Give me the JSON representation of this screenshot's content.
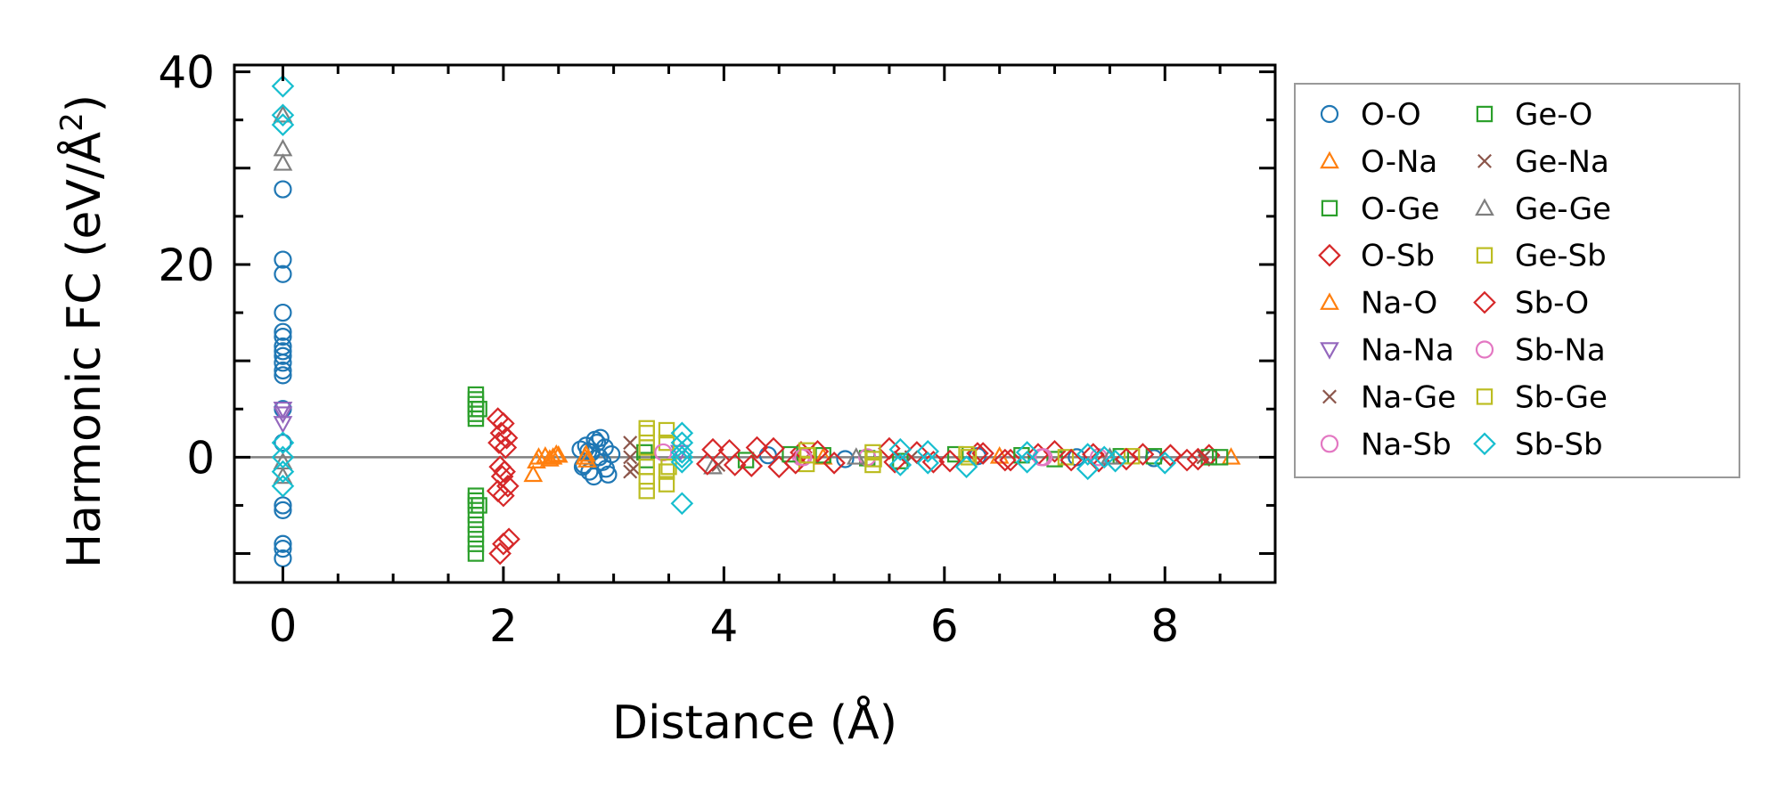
{
  "chart_data": {
    "type": "scatter",
    "xlabel": "Distance (Å)",
    "ylabel_main": "Harmonic FC (eV/Å",
    "ylabel_sup": "2",
    "ylabel_end": ")",
    "xlim": [
      -0.44,
      9.0
    ],
    "ylim": [
      -13.0,
      40.7
    ],
    "xticks": [
      0,
      2,
      4,
      6,
      8
    ],
    "xtick_labels": [
      "0",
      "2",
      "4",
      "6",
      "8"
    ],
    "xminor_step": 0.5,
    "yticks": [
      0,
      20,
      40
    ],
    "ytick_labels": [
      "0",
      "20",
      "40"
    ],
    "yminor_step": 5,
    "zero_line": 0,
    "legend_placement": "outside-right",
    "legend_columns": 2,
    "series": [
      {
        "name": "O-O",
        "color": "#1f77b4",
        "marker": "circle",
        "x": [
          0,
          0,
          0,
          0,
          0,
          0,
          0,
          0,
          0,
          0,
          0,
          0,
          0,
          0,
          0,
          0,
          0,
          0,
          0,
          2.7,
          2.72,
          2.75,
          2.78,
          2.8,
          2.82,
          2.85,
          2.88,
          2.9,
          2.92,
          2.95,
          2.98,
          2.73,
          2.83,
          2.93,
          2.87,
          2.77,
          4.4,
          5.1,
          6.3,
          7.2,
          7.9
        ],
        "y": [
          27.8,
          20.5,
          19,
          15,
          13,
          12.5,
          11.5,
          11,
          10.5,
          9.8,
          9,
          8.5,
          5,
          1.5,
          -5,
          -5.5,
          -9,
          -9.5,
          -10.5,
          0.8,
          -1,
          1.2,
          -1.5,
          0.5,
          -2,
          1.5,
          2,
          -0.5,
          1,
          -1.8,
          0.3,
          -0.8,
          1.8,
          -1.2,
          0,
          0.6,
          0.2,
          -0.2,
          0.1,
          0,
          -0.1
        ]
      },
      {
        "name": "O-Na",
        "color": "#ff7f0e",
        "marker": "triangle-up",
        "x": [
          2.27,
          2.3,
          2.38,
          2.45,
          2.5,
          2.75,
          2.76,
          4.9,
          6.5,
          8.6
        ],
        "y": [
          -1.8,
          -0.4,
          0.1,
          0,
          0.2,
          0.3,
          -0.3,
          0,
          0.1,
          0
        ]
      },
      {
        "name": "O-Ge",
        "color": "#2ca02c",
        "marker": "square",
        "x": [
          1.75,
          1.75,
          1.75,
          1.75,
          1.75,
          1.75,
          1.75,
          1.75,
          1.75,
          1.75,
          1.75,
          1.75,
          1.75,
          1.75,
          3.28,
          4.2,
          4.9,
          5.3,
          6.1,
          7.0,
          7.9,
          8.5
        ],
        "y": [
          6.5,
          6,
          5.5,
          5,
          4.5,
          4,
          -4,
          -4.5,
          -5,
          -6,
          -7,
          -8,
          -9,
          -10,
          0.5,
          -0.3,
          0.2,
          -0.1,
          0.3,
          -0.2,
          0.1,
          0
        ]
      },
      {
        "name": "O-Sb",
        "color": "#d62728",
        "marker": "diamond",
        "x": [
          1.95,
          2.0,
          1.98,
          2.03,
          1.96,
          2.02,
          1.97,
          2.01,
          1.99,
          2.04,
          1.95,
          2.0,
          2.05,
          2.0,
          1.97,
          3.9,
          4.1,
          4.3,
          4.5,
          4.7,
          5.0,
          5.5,
          5.9,
          6.3,
          6.6,
          7.0,
          7.4,
          7.8,
          8.2,
          8.4
        ],
        "y": [
          4,
          3.5,
          2.5,
          2,
          1.5,
          1,
          -1,
          -1.5,
          -2,
          -3,
          -3.5,
          -4,
          -8.5,
          -9,
          -10,
          0.8,
          -0.8,
          1,
          -1,
          0.5,
          -0.6,
          0.9,
          -0.5,
          0.4,
          -0.3,
          0.6,
          -0.4,
          0.3,
          -0.3,
          0.2
        ]
      },
      {
        "name": "Na-O",
        "color": "#ff7f0e",
        "marker": "triangle-up",
        "x": [
          2.32,
          2.42,
          2.48,
          2.74
        ],
        "y": [
          0,
          -0.2,
          0.3,
          0
        ]
      },
      {
        "name": "Na-Na",
        "color": "#9467bd",
        "marker": "triangle-down",
        "x": [
          0,
          0,
          0,
          3.6
        ],
        "y": [
          5,
          4.5,
          3.5,
          0.5
        ]
      },
      {
        "name": "Na-Ge",
        "color": "#8c564b",
        "marker": "x",
        "x": [
          3.15,
          3.15,
          3.15,
          3.95
        ],
        "y": [
          1.5,
          -1.5,
          0,
          -0.8
        ]
      },
      {
        "name": "Na-Sb",
        "color": "#e377c2",
        "marker": "circle",
        "x": [
          4.7,
          5.3,
          6.9,
          7.4
        ],
        "y": [
          0,
          0,
          0,
          0
        ]
      },
      {
        "name": "Ge-O",
        "color": "#2ca02c",
        "marker": "square",
        "x": [
          1.78,
          1.78,
          3.3,
          4.6,
          5.6,
          6.7,
          7.6,
          8.4
        ],
        "y": [
          5,
          -5,
          -0.3,
          0.3,
          -0.4,
          0.2,
          0.1,
          0
        ]
      },
      {
        "name": "Ge-Na",
        "color": "#8c564b",
        "marker": "x",
        "x": [
          3.18,
          5.7,
          8.35
        ],
        "y": [
          -1.2,
          0,
          0
        ]
      },
      {
        "name": "Ge-Ge",
        "color": "#7f7f7f",
        "marker": "triangle-up",
        "x": [
          0,
          0,
          0,
          0,
          0,
          3.9,
          5.2,
          7.5
        ],
        "y": [
          35.5,
          32,
          30.5,
          -0.5,
          -2,
          -1,
          0,
          0
        ]
      },
      {
        "name": "Ge-Sb",
        "color": "#bcbd22",
        "marker": "square",
        "x": [
          3.3,
          3.3,
          3.3,
          3.3,
          3.3,
          3.3,
          3.48,
          3.48,
          3.48,
          3.48,
          4.75,
          4.75,
          5.35,
          5.35,
          6.2,
          7.1,
          7.7
        ],
        "y": [
          3,
          2.5,
          1,
          -1,
          -2.5,
          -3.5,
          2.8,
          1.5,
          -1.5,
          -2.8,
          0.7,
          -0.7,
          0.5,
          -0.8,
          0.3,
          0,
          0.1
        ]
      },
      {
        "name": "Sb-O",
        "color": "#d62728",
        "marker": "diamond",
        "x": [
          3.85,
          4.05,
          4.25,
          4.45,
          4.65,
          4.85,
          5.55,
          5.75,
          6.05,
          6.35,
          6.55,
          6.85,
          7.15,
          7.35,
          7.65,
          8.05,
          8.3
        ],
        "y": [
          -0.7,
          0.7,
          -0.9,
          0.9,
          -0.6,
          0.6,
          -0.5,
          0.5,
          -0.4,
          0.4,
          -0.3,
          0.3,
          -0.3,
          0.3,
          -0.2,
          0.2,
          -0.2
        ]
      },
      {
        "name": "Sb-Na",
        "color": "#e377c2",
        "marker": "circle",
        "x": [
          3.45,
          4.72,
          6.88
        ],
        "y": [
          0.5,
          0,
          0
        ]
      },
      {
        "name": "Sb-Ge",
        "color": "#bcbd22",
        "marker": "square",
        "x": [
          3.5,
          4.76,
          5.36,
          6.22
        ],
        "y": [
          -1,
          0.2,
          -0.2,
          0
        ]
      },
      {
        "name": "Sb-Sb",
        "color": "#17becf",
        "marker": "diamond",
        "x": [
          0,
          0,
          0,
          0,
          0,
          0,
          0,
          3.62,
          3.62,
          3.62,
          3.62,
          3.62,
          3.62,
          5.6,
          5.6,
          5.85,
          5.85,
          6.2,
          6.75,
          6.75,
          7.3,
          7.3,
          7.45,
          7.55,
          8.0
        ],
        "y": [
          38.5,
          35.5,
          34.5,
          1.5,
          0,
          -1.5,
          -3,
          2.5,
          1.5,
          0.5,
          -0.5,
          0,
          -4.8,
          0.8,
          -0.8,
          0.6,
          -0.6,
          -1,
          0.5,
          -0.5,
          0.3,
          -1.2,
          0,
          -0.4,
          -0.6
        ]
      }
    ]
  }
}
